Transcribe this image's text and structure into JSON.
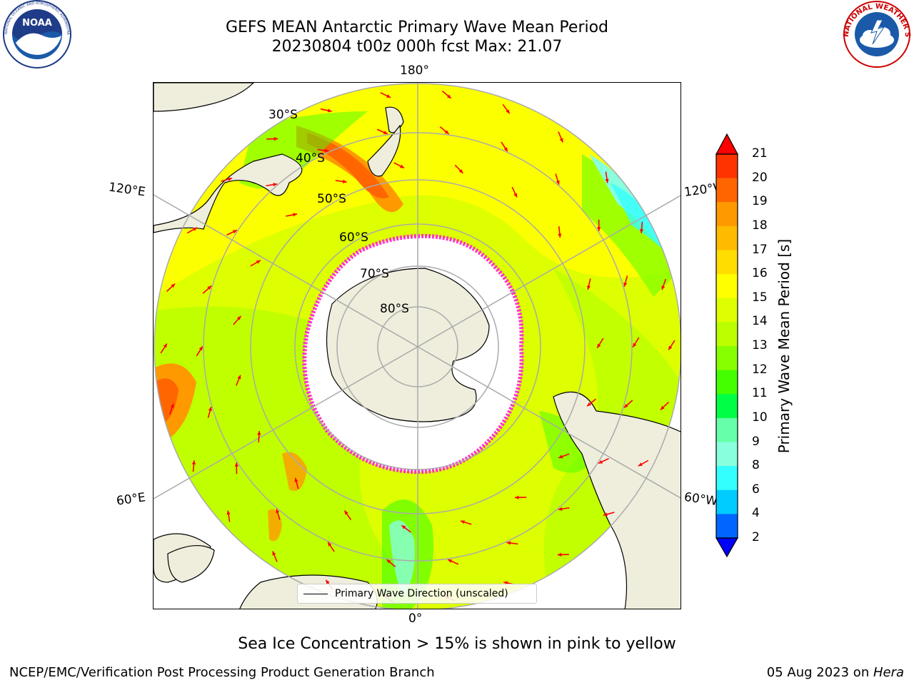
{
  "title": {
    "line1": "GEFS MEAN Antarctic Primary Wave Mean Period",
    "line2": "20230804 t00z 000h fcst   Max: 21.07"
  },
  "logos": {
    "left": {
      "name": "noaa-logo",
      "text": "NOAA",
      "ring_text": "NATIONAL OCEANIC AND ATMOSPHERIC ADMINISTRATION · U.S. DEPARTMENT OF COMMERCE"
    },
    "right": {
      "name": "nws-logo",
      "ring_text": "NATIONAL WEATHER SERVICE"
    }
  },
  "map": {
    "projection": "south-polar-stereographic",
    "longitude_labels": [
      "180°",
      "120°E",
      "120°W",
      "60°E",
      "60°W",
      "0°"
    ],
    "latitude_labels": [
      "30°S",
      "40°S",
      "50°S",
      "60°S",
      "70°S",
      "80°S"
    ],
    "legend": "Primary Wave Direction (unscaled)",
    "arrow_color": "#ff0000",
    "sea_ice_colors": [
      "#ff33cc",
      "#ffcc00"
    ],
    "land_color": "#efeedd"
  },
  "colorbar": {
    "label": "Primary Wave Mean Period [s]",
    "ticks": [
      "21",
      "20",
      "19",
      "18",
      "17",
      "16",
      "15",
      "14",
      "13",
      "12",
      "11",
      "10",
      "9",
      "8",
      "6",
      "4",
      "2"
    ],
    "colors": [
      "#ff0000",
      "#ff3300",
      "#ff6600",
      "#ff9900",
      "#ffbb00",
      "#ffdd00",
      "#ffff00",
      "#ddff00",
      "#bbff00",
      "#88ff00",
      "#44ff00",
      "#00ff44",
      "#66ffaa",
      "#88ffdd",
      "#33ffff",
      "#00ccff",
      "#0066ff",
      "#0000ff"
    ]
  },
  "footnote": "Sea Ice Concentration > 15% is shown in pink to yellow",
  "credit_left": "NCEP/EMC/Verification Post Processing Product Generation Branch",
  "credit_right_date": "05 Aug 2023 on ",
  "credit_right_machine": "Hera"
}
